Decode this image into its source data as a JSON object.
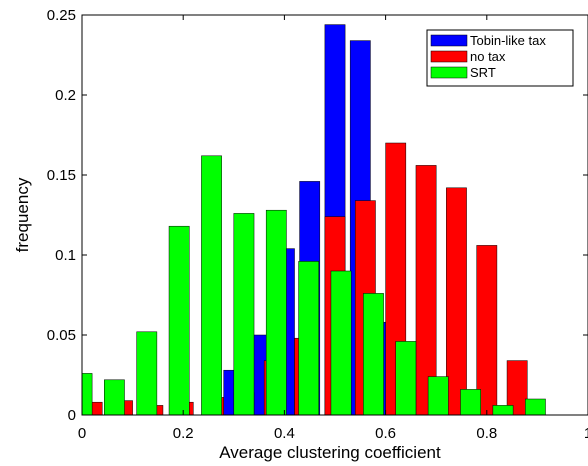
{
  "chart_data": {
    "type": "bar",
    "title": "",
    "xlabel": "Average clustering coefficient",
    "ylabel": "frequency",
    "xlim": [
      0,
      1
    ],
    "ylim": [
      0,
      0.25
    ],
    "x_ticks": [
      0,
      0.2,
      0.4,
      0.6,
      0.8,
      1
    ],
    "x_tick_labels": [
      "0",
      "0.2",
      "0.4",
      "0.6",
      "0.8",
      "1"
    ],
    "y_ticks": [
      0,
      0.05,
      0.1,
      0.15,
      0.2,
      0.25
    ],
    "y_tick_labels": [
      "0",
      "0.05",
      "0.1",
      "0.15",
      "0.2",
      "0.25"
    ],
    "bar_width": 0.04,
    "grid": false,
    "legend_position": "top-right",
    "series": [
      {
        "name": "Tobin-like tax",
        "color": "#0000ff",
        "x": [
          0.3,
          0.35,
          0.4,
          0.45,
          0.5,
          0.55,
          0.6,
          0.65
        ],
        "values": [
          0.028,
          0.05,
          0.104,
          0.146,
          0.244,
          0.234,
          0.058,
          0.003
        ]
      },
      {
        "name": "no tax",
        "color": "#ff0000",
        "x": [
          0.02,
          0.08,
          0.14,
          0.2,
          0.26,
          0.32,
          0.38,
          0.44,
          0.5,
          0.56,
          0.62,
          0.68,
          0.74,
          0.8,
          0.86,
          0.92
        ],
        "values": [
          0.008,
          0.009,
          0.006,
          0.008,
          0.011,
          0.014,
          0.034,
          0.048,
          0.124,
          0.134,
          0.17,
          0.156,
          0.142,
          0.106,
          0.034,
          0.0
        ]
      },
      {
        "name": "SRT",
        "color": "#00ff00",
        "x": [
          0.0,
          0.064,
          0.128,
          0.192,
          0.256,
          0.32,
          0.384,
          0.448,
          0.512,
          0.576,
          0.64,
          0.704,
          0.768,
          0.832,
          0.896,
          0.96
        ],
        "values": [
          0.026,
          0.022,
          0.052,
          0.118,
          0.162,
          0.126,
          0.128,
          0.096,
          0.09,
          0.076,
          0.046,
          0.024,
          0.016,
          0.006,
          0.01,
          0.0
        ]
      }
    ]
  }
}
